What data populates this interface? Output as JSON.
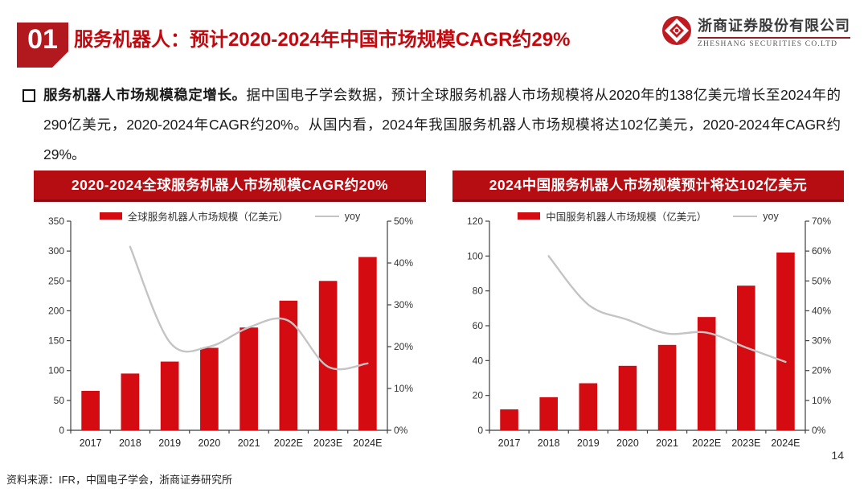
{
  "header": {
    "section_number": "01",
    "title": "服务机器人：预计2020-2024年中国市场规模CAGR约29%"
  },
  "logo": {
    "company_cn": "浙商证券股份有限公司",
    "company_en": "ZHESHANG SECURITIES CO.LTD"
  },
  "body": {
    "lead": "服务机器人市场规模稳定增长。",
    "text": "据中国电子学会数据，预计全球服务机器人市场规模将从2020年的138亿美元增长至2024年的290亿美元，2020-2024年CAGR约20%。从国内看，2024年我国服务机器人市场规模将达102亿美元，2020-2024年CAGR约29%。"
  },
  "colors": {
    "accent_red": "#c00a0f",
    "banner_red": "#b60d12",
    "bar_red": "#d40b11",
    "line_gray": "#c4c4c4"
  },
  "chart_data": [
    {
      "type": "bar",
      "title": "2020-2024全球服务机器人市场规模CAGR约20%",
      "categories": [
        "2017",
        "2018",
        "2019",
        "2020",
        "2021",
        "2022E",
        "2023E",
        "2024E"
      ],
      "series": [
        {
          "name": "全球服务机器人市场规模（亿美元）",
          "type": "bar",
          "axis": "left",
          "color": "#d40b11",
          "values": [
            66,
            95,
            115,
            138,
            172,
            217,
            250,
            290
          ]
        },
        {
          "name": "yoy",
          "type": "line",
          "axis": "right",
          "color": "#c4c4c4",
          "values": [
            null,
            43.9,
            21.1,
            20.0,
            24.6,
            26.2,
            15.2,
            16.0
          ]
        }
      ],
      "left_axis": {
        "min": 0,
        "max": 350,
        "step": 50,
        "suffix": ""
      },
      "right_axis": {
        "min": 0,
        "max": 50,
        "step": 10,
        "suffix": "%"
      },
      "grid": false,
      "legend_position": "top-center"
    },
    {
      "type": "bar",
      "title": "2024中国服务机器人市场规模预计将达102亿美元",
      "categories": [
        "2017",
        "2018",
        "2019",
        "2020",
        "2021",
        "2022E",
        "2023E",
        "2024E"
      ],
      "series": [
        {
          "name": "中国服务机器人市场规模（亿美元）",
          "type": "bar",
          "axis": "left",
          "color": "#d40b11",
          "values": [
            12,
            19,
            27,
            37,
            49,
            65,
            83,
            102
          ]
        },
        {
          "name": "yoy",
          "type": "line",
          "axis": "right",
          "color": "#c4c4c4",
          "values": [
            null,
            58.3,
            42.1,
            37.0,
            32.4,
            32.7,
            27.7,
            22.9
          ]
        }
      ],
      "left_axis": {
        "min": 0,
        "max": 120,
        "step": 20,
        "suffix": ""
      },
      "right_axis": {
        "min": 0,
        "max": 70,
        "step": 10,
        "suffix": "%"
      },
      "grid": false,
      "legend_position": "top-center"
    }
  ],
  "footer": {
    "source_note": "资料来源：IFR，中国电子学会，浙商证券研究所",
    "page_number": "14"
  }
}
